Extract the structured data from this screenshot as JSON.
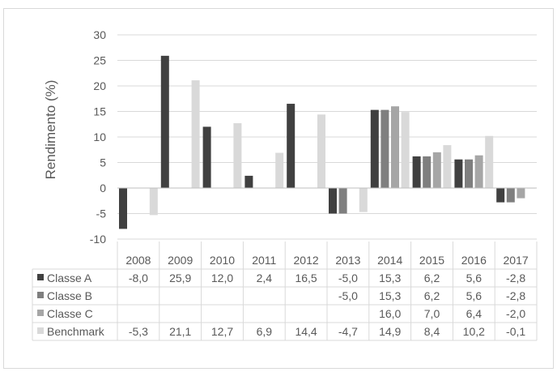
{
  "chart_data": {
    "type": "bar",
    "title": "",
    "ylabel": "Rendimento  (%)",
    "xlabel": "",
    "ylim": [
      -10,
      30
    ],
    "yticks": [
      "30",
      "25",
      "20",
      "15",
      "10",
      "5",
      "0",
      "-5",
      "-10"
    ],
    "categories": [
      "2008",
      "2009",
      "2010",
      "2011",
      "2012",
      "2013",
      "2014",
      "2015",
      "2016",
      "2017"
    ],
    "legend_placement": "data-table-left",
    "grid": true,
    "series": [
      {
        "name": "Classe A",
        "color": "#404040",
        "values": [
          -8.0,
          25.9,
          12.0,
          2.4,
          16.5,
          -5.0,
          15.3,
          6.2,
          5.6,
          -2.8
        ],
        "labels": [
          "-8,0",
          "25,9",
          "12,0",
          "2,4",
          "16,5",
          "-5,0",
          "15,3",
          "6,2",
          "5,6",
          "-2,8"
        ]
      },
      {
        "name": "Classe B",
        "color": "#7f7f7f",
        "values": [
          null,
          null,
          null,
          null,
          null,
          -5.0,
          15.3,
          6.2,
          5.6,
          -2.8
        ],
        "labels": [
          "",
          "",
          "",
          "",
          "",
          "-5,0",
          "15,3",
          "6,2",
          "5,6",
          "-2,8"
        ]
      },
      {
        "name": "Classe C",
        "color": "#a6a6a6",
        "values": [
          null,
          null,
          null,
          null,
          null,
          null,
          16.0,
          7.0,
          6.4,
          -2.0
        ],
        "labels": [
          "",
          "",
          "",
          "",
          "",
          "",
          "16,0",
          "7,0",
          "6,4",
          "-2,0"
        ]
      },
      {
        "name": "Benchmark",
        "color": "#d9d9d9",
        "values": [
          -5.3,
          21.1,
          12.7,
          6.9,
          14.4,
          -4.7,
          14.9,
          8.4,
          10.2,
          -0.1
        ],
        "labels": [
          "-5,3",
          "21,1",
          "12,7",
          "6,9",
          "14,4",
          "-4,7",
          "14,9",
          "8,4",
          "10,2",
          "-0,1"
        ]
      }
    ]
  }
}
